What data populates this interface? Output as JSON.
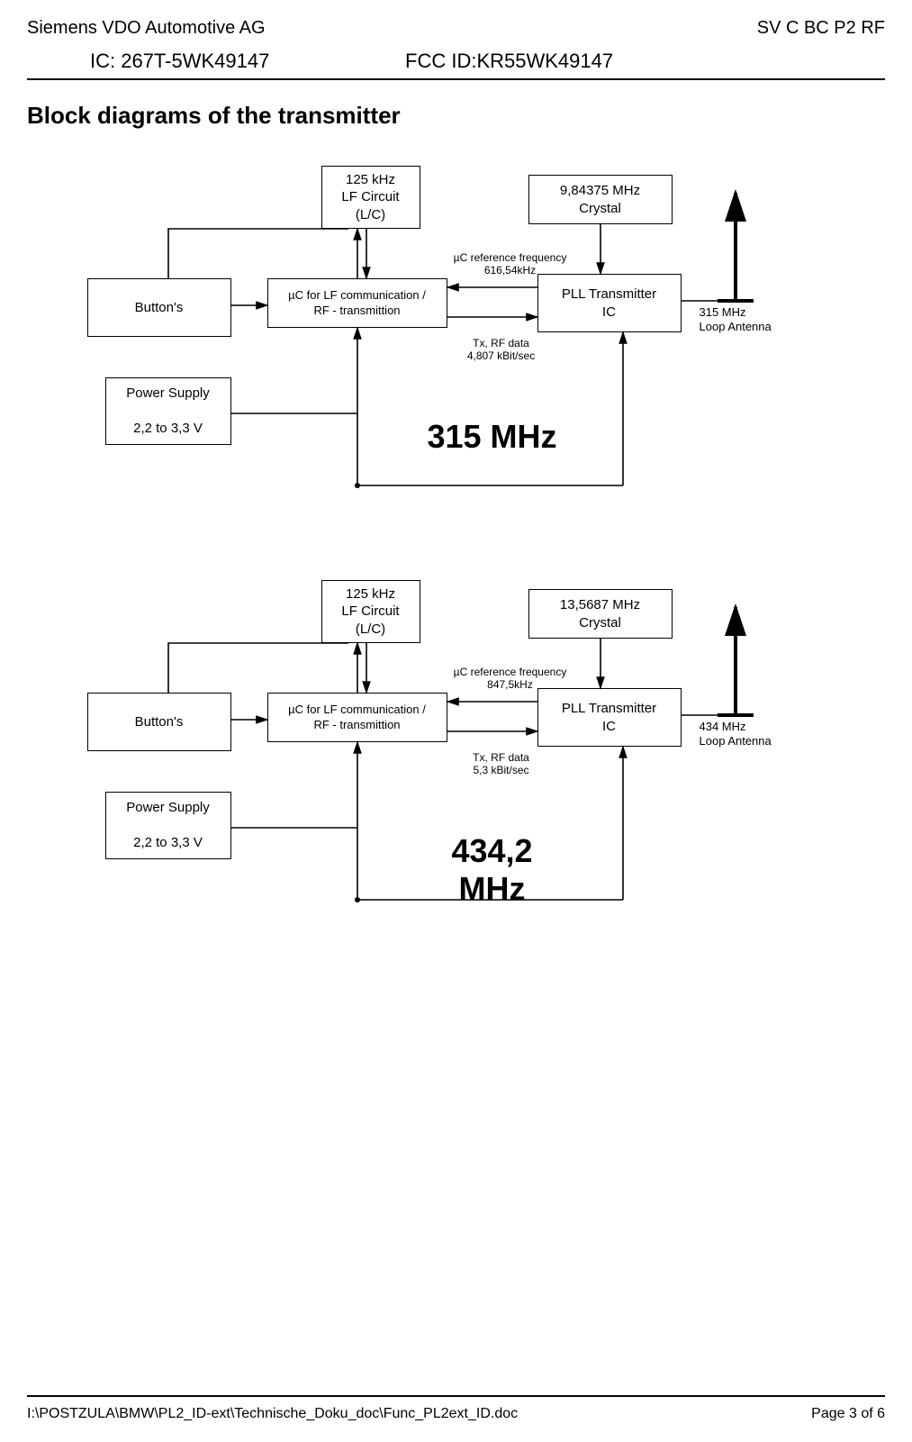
{
  "header": {
    "company": "Siemens VDO Automotive AG",
    "doc_code": "SV C BC P2 RF",
    "ic_label": "IC: 267T-5WK49147",
    "fcc_label": "FCC ID:KR55WK49147"
  },
  "section_title": "Block diagrams of the transmitter",
  "diagrams": [
    {
      "freq_title": "315 MHz",
      "lf_circuit": "125 kHz\nLF Circuit\n(L/C)",
      "crystal": "9,84375 MHz\nCrystal",
      "buttons": "Button's",
      "uc": "µC for LF communication /\nRF - transmittion",
      "pll": "PLL Transmitter\nIC",
      "power": "Power Supply\n\n2,2 to 3,3 V",
      "ref_freq": "µC reference frequency\n616,54kHz",
      "tx_data": "Tx, RF data\n4,807 kBit/sec",
      "antenna": "315 MHz\nLoop Antenna"
    },
    {
      "freq_title": "434,2\nMHz",
      "lf_circuit": "125 kHz\nLF Circuit\n(L/C)",
      "crystal": "13,5687 MHz\nCrystal",
      "buttons": "Button's",
      "uc": "µC for LF communication /\nRF - transmittion",
      "pll": "PLL Transmitter\nIC",
      "power": "Power Supply\n\n2,2 to 3,3 V",
      "ref_freq": "µC reference frequency\n847,5kHz",
      "tx_data": "Tx, RF data\n5,3 kBit/sec",
      "antenna": "434 MHz\nLoop Antenna"
    }
  ],
  "footer": {
    "path": "I:\\POSTZULA\\BMW\\PL2_ID-ext\\Technische_Doku_doc\\Func_PL2ext_ID.doc",
    "page": "Page 3 of 6"
  },
  "style": {
    "arrow_stroke": "#000000",
    "arrow_width": 1.6
  }
}
